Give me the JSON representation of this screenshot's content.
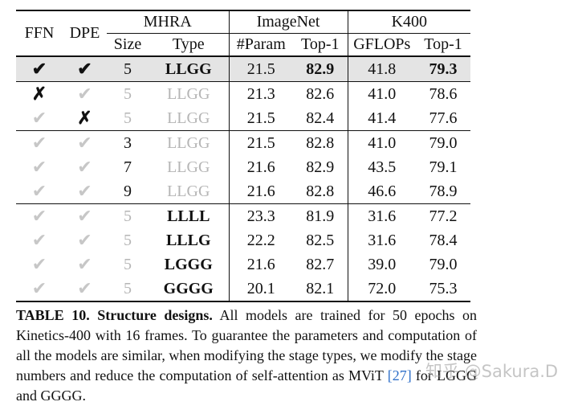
{
  "table": {
    "headers": {
      "ffn": "FFN",
      "dpe": "DPE",
      "mhra": "MHRA",
      "imagenet": "ImageNet",
      "k400": "K400",
      "size": "Size",
      "type": "Type",
      "param": "#Param",
      "top1_in": "Top-1",
      "gflops": "GFLOPs",
      "top1_k": "Top-1"
    },
    "rows": [
      {
        "ffn": "✔",
        "dpe": "✔",
        "size": "5",
        "type": "LLGG",
        "param": "21.5",
        "top1_in": "82.9",
        "gflops": "41.8",
        "top1_k": "79.3"
      },
      {
        "ffn": "✗",
        "dpe": "✔",
        "size": "5",
        "type": "LLGG",
        "param": "21.3",
        "top1_in": "82.6",
        "gflops": "41.0",
        "top1_k": "78.6"
      },
      {
        "ffn": "✔",
        "dpe": "✗",
        "size": "5",
        "type": "LLGG",
        "param": "21.5",
        "top1_in": "82.4",
        "gflops": "41.4",
        "top1_k": "77.6"
      },
      {
        "ffn": "✔",
        "dpe": "✔",
        "size": "3",
        "type": "LLGG",
        "param": "21.5",
        "top1_in": "82.8",
        "gflops": "41.0",
        "top1_k": "79.0"
      },
      {
        "ffn": "✔",
        "dpe": "✔",
        "size": "7",
        "type": "LLGG",
        "param": "21.6",
        "top1_in": "82.9",
        "gflops": "43.5",
        "top1_k": "79.1"
      },
      {
        "ffn": "✔",
        "dpe": "✔",
        "size": "9",
        "type": "LLGG",
        "param": "21.6",
        "top1_in": "82.8",
        "gflops": "46.6",
        "top1_k": "78.9"
      },
      {
        "ffn": "✔",
        "dpe": "✔",
        "size": "5",
        "type": "LLLL",
        "param": "23.3",
        "top1_in": "81.9",
        "gflops": "31.6",
        "top1_k": "77.2"
      },
      {
        "ffn": "✔",
        "dpe": "✔",
        "size": "5",
        "type": "LLLG",
        "param": "22.2",
        "top1_in": "82.5",
        "gflops": "31.6",
        "top1_k": "78.4"
      },
      {
        "ffn": "✔",
        "dpe": "✔",
        "size": "5",
        "type": "LGGG",
        "param": "21.6",
        "top1_in": "82.7",
        "gflops": "39.0",
        "top1_k": "79.0"
      },
      {
        "ffn": "✔",
        "dpe": "✔",
        "size": "5",
        "type": "GGGG",
        "param": "20.1",
        "top1_in": "82.1",
        "gflops": "72.0",
        "top1_k": "75.3"
      }
    ]
  },
  "caption": {
    "label": "TABLE 10. Structure designs.",
    "text_a": " All models are trained for 50 epochs on Kinetics-400 with 16 frames. To guarantee the parameters and computation of all the models are similar, when modifying the stage types, we modify the stage numbers and reduce the computation of self-attention as MViT ",
    "ref": "[27]",
    "text_b": " for LGGG and GGGG."
  },
  "watermark": "知乎 @Sakura.D"
}
